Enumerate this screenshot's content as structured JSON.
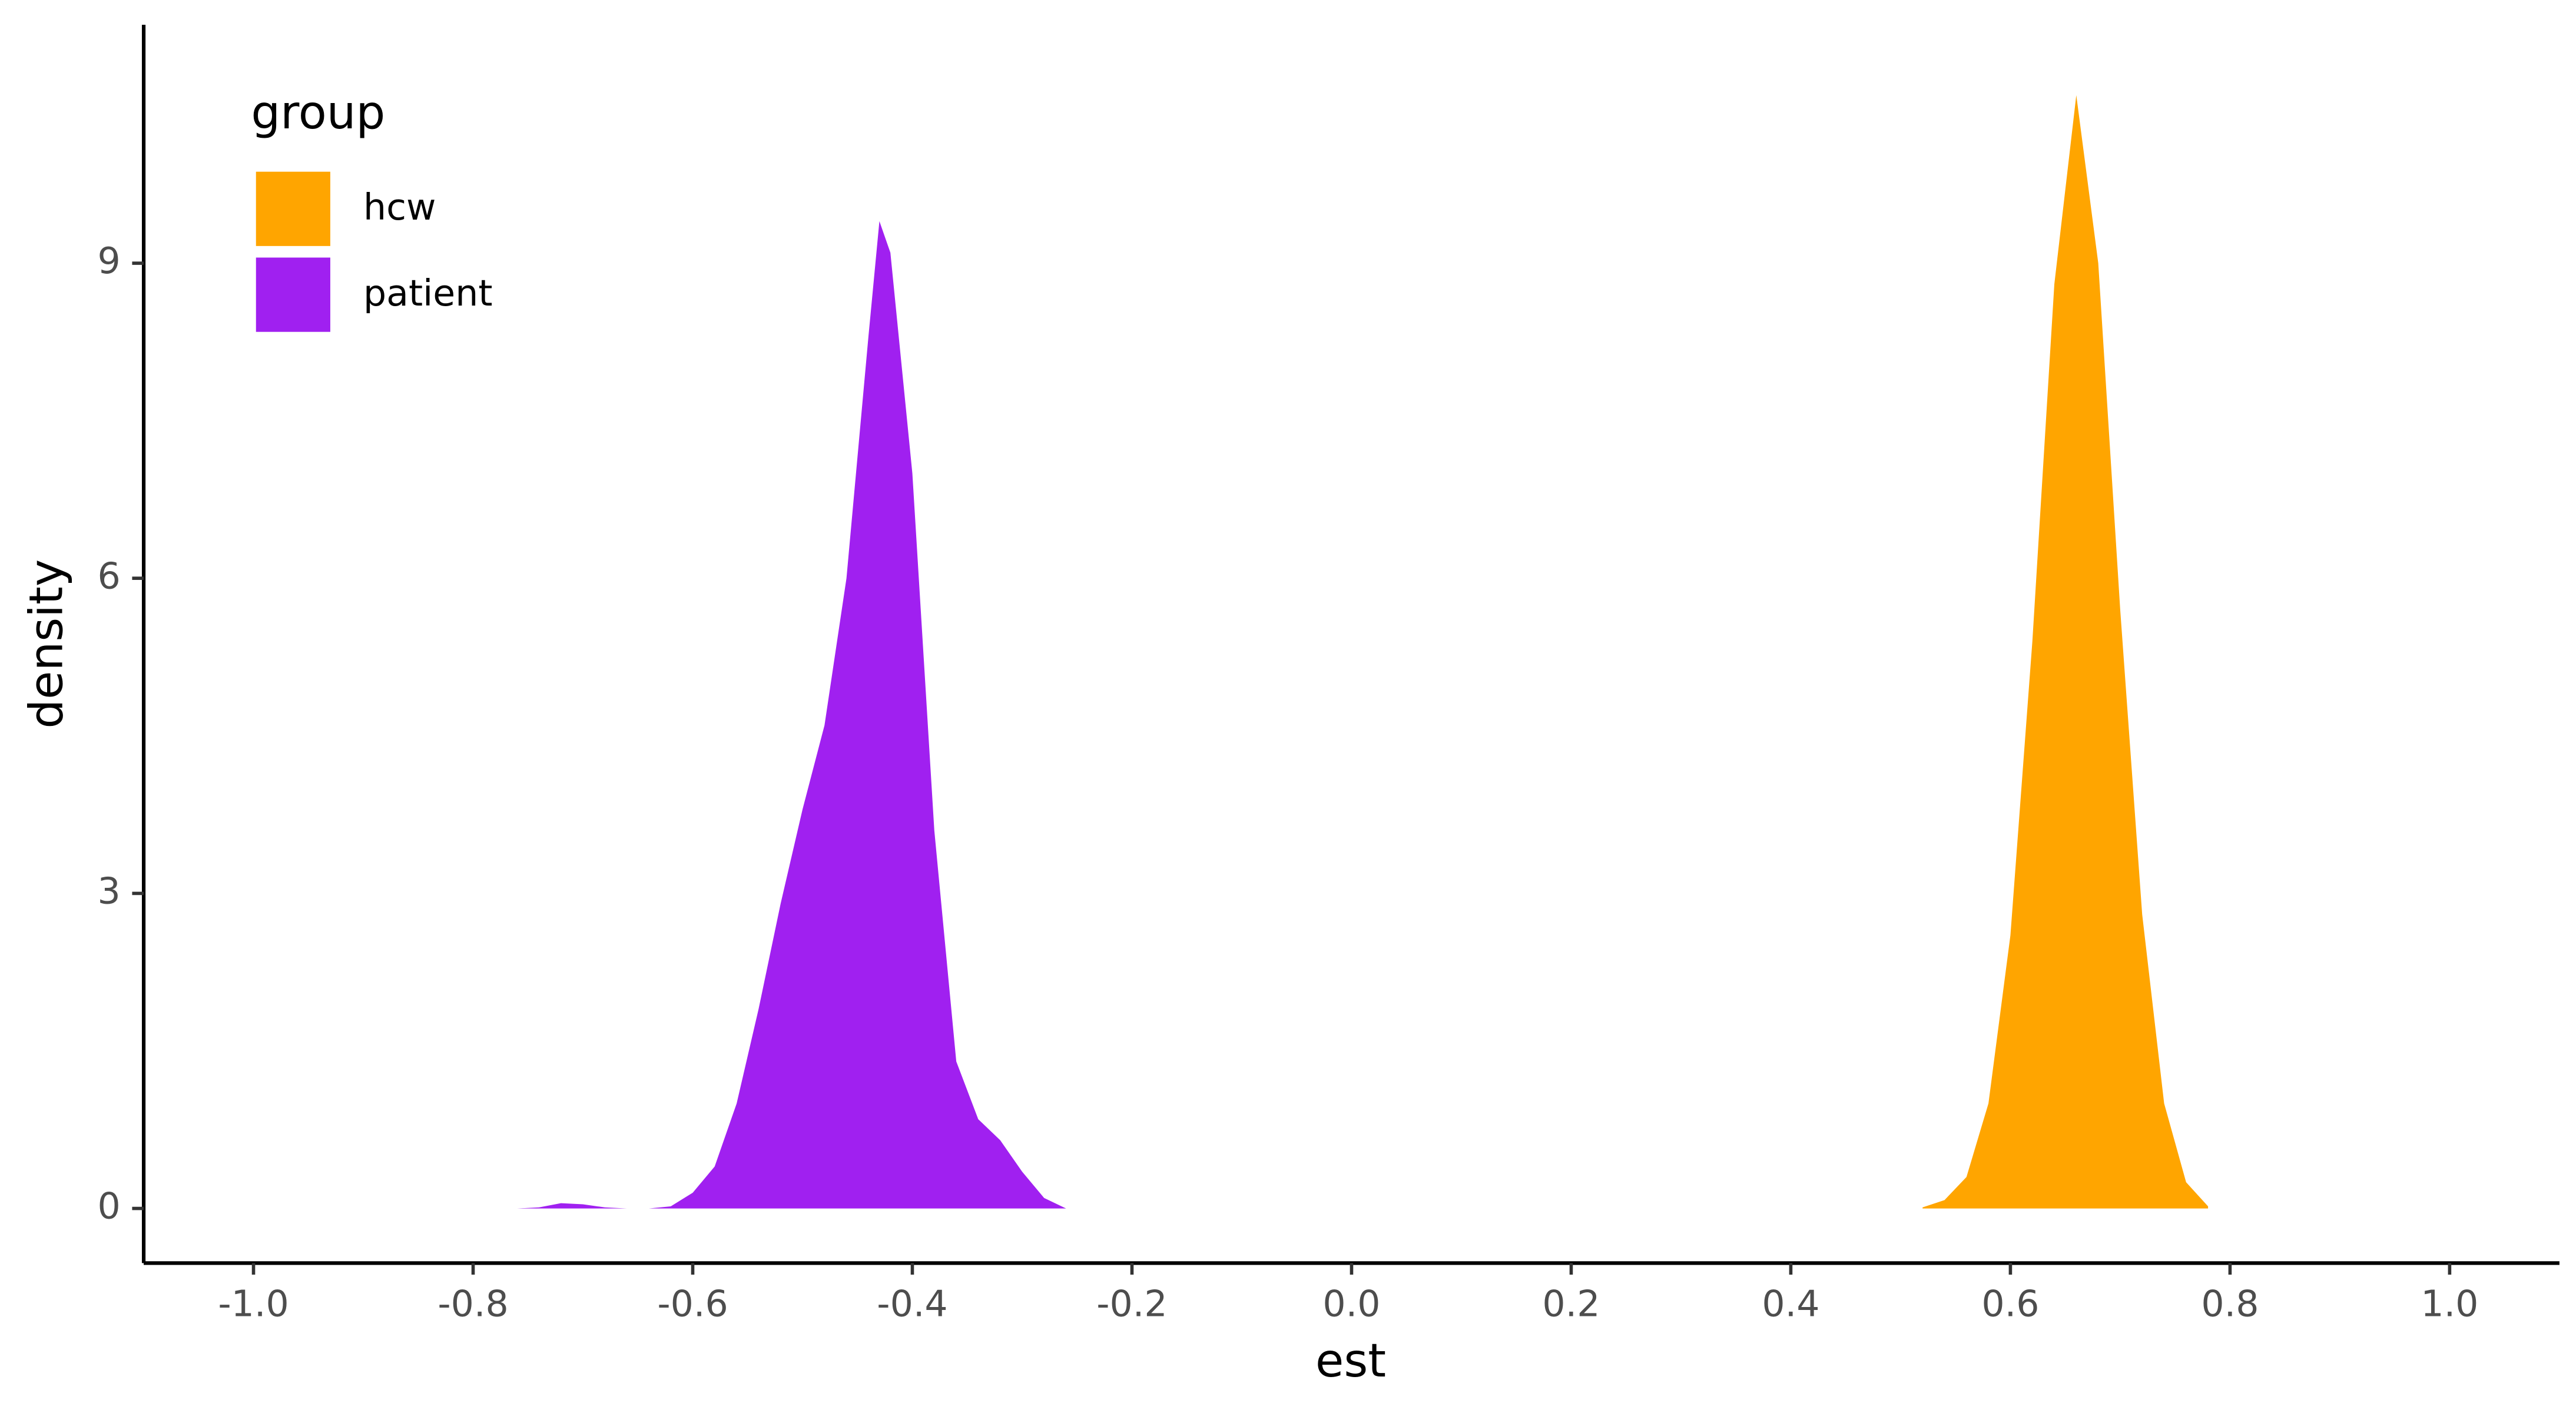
{
  "chart_data": {
    "type": "density",
    "x_label": "est",
    "y_label": "density",
    "legend_title": "group",
    "legend_position": "top-left",
    "series": [
      {
        "name": "hcw",
        "color": "#ffa500",
        "x": [
          0.52,
          0.54,
          0.56,
          0.58,
          0.6,
          0.62,
          0.64,
          0.66,
          0.68,
          0.7,
          0.72,
          0.74,
          0.76,
          0.78
        ],
        "values": [
          0.01,
          0.08,
          0.3,
          1.0,
          2.6,
          5.4,
          8.8,
          10.6,
          9.0,
          5.7,
          2.8,
          1.0,
          0.25,
          0.02
        ]
      },
      {
        "name": "patient",
        "color": "#a020f0",
        "x": [
          -0.76,
          -0.74,
          -0.72,
          -0.7,
          -0.68,
          -0.66,
          -0.64,
          -0.62,
          -0.6,
          -0.58,
          -0.56,
          -0.54,
          -0.52,
          -0.5,
          -0.48,
          -0.46,
          -0.44,
          -0.43,
          -0.42,
          -0.4,
          -0.38,
          -0.36,
          -0.34,
          -0.32,
          -0.3,
          -0.28,
          -0.26
        ],
        "values": [
          0,
          0.01,
          0.05,
          0.04,
          0.01,
          0,
          0,
          0.02,
          0.15,
          0.4,
          1.0,
          1.9,
          2.9,
          3.8,
          4.6,
          6.0,
          8.3,
          9.4,
          9.1,
          7.0,
          3.6,
          1.4,
          0.85,
          0.65,
          0.35,
          0.1,
          0
        ]
      }
    ],
    "xlim": [
      -1.1,
      1.1
    ],
    "ylim": [
      -0.52,
      11.27
    ],
    "xticks": [
      {
        "value": -1,
        "label": "-1.0"
      },
      -0.8,
      -0.6,
      -0.4,
      -0.2,
      {
        "value": 0,
        "label": "0.0"
      },
      0.2,
      0.4,
      0.6,
      0.8,
      {
        "value": 1,
        "label": "1.0"
      }
    ],
    "yticks": [
      0,
      3,
      6,
      9
    ]
  }
}
